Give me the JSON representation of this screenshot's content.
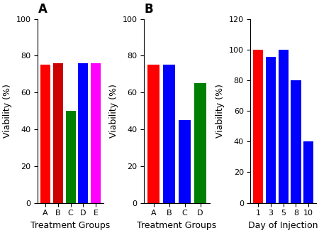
{
  "chart_data": [
    {
      "type": "bar",
      "title": "A",
      "categories": [
        "A",
        "B",
        "C",
        "D",
        "E"
      ],
      "values": [
        75,
        76,
        50,
        76,
        76
      ],
      "colors": [
        "red",
        "#cc0000",
        "green",
        "blue",
        "magenta"
      ],
      "x_label": "Treatment Groups",
      "y_label": "Viability (%)",
      "ylim": [
        0,
        100
      ],
      "yticks": [
        0,
        20,
        40,
        60,
        80,
        100
      ],
      "grid": false
    },
    {
      "type": "bar",
      "title": "B",
      "categories": [
        "A",
        "B",
        "C",
        "D"
      ],
      "values": [
        75,
        75,
        45,
        65
      ],
      "colors": [
        "red",
        "blue",
        "blue",
        "green"
      ],
      "x_label": "Treatment Groups",
      "y_label": "Viability (%)",
      "ylim": [
        0,
        100
      ],
      "yticks": [
        0,
        20,
        40,
        60,
        80,
        100
      ],
      "grid": false
    },
    {
      "type": "bar",
      "categories": [
        "1",
        "3",
        "5",
        "8",
        "10"
      ],
      "values": [
        100,
        95,
        100,
        80,
        40
      ],
      "colors": [
        "red",
        "blue",
        "blue",
        "blue",
        "blue"
      ],
      "x_label": "Day of Injection",
      "y_label": "Viability (%)",
      "ylim": [
        0,
        120
      ],
      "yticks": [
        0,
        20,
        40,
        60,
        80,
        100,
        120
      ],
      "grid": false
    }
  ]
}
